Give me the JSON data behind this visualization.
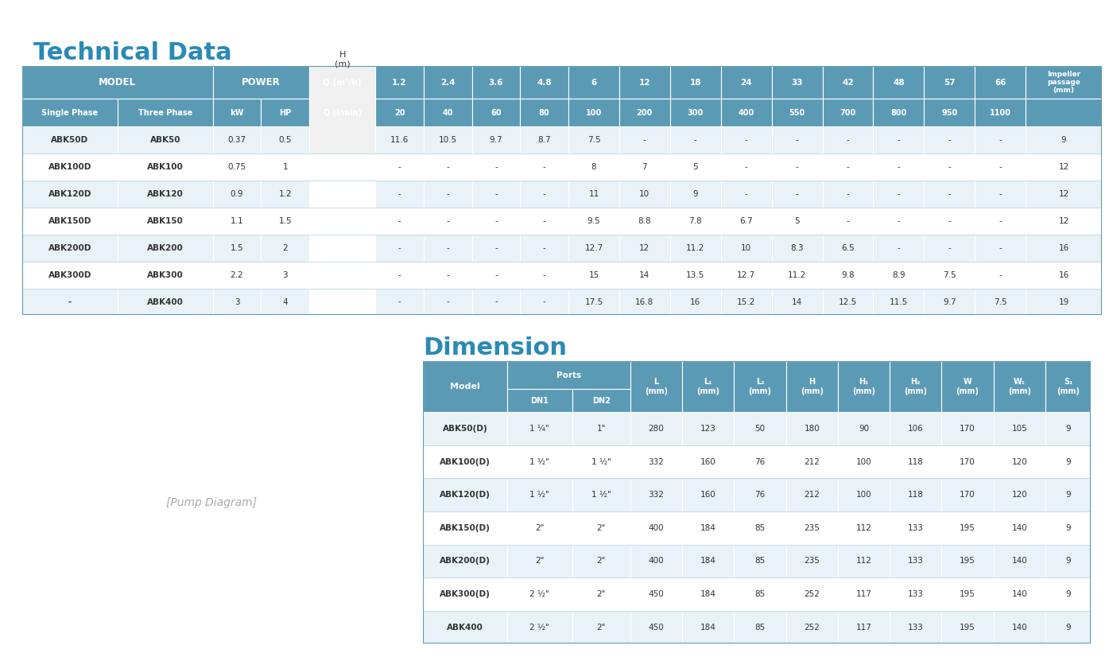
{
  "title1": "Technical Data",
  "title2": "Dimension",
  "header_color": "#5b9ab5",
  "header_text_color": "#ffffff",
  "alt_row_color": "#e8f2f7",
  "row_color": "#ffffff",
  "border_color": "#5b9ab5",
  "text_color": "#333333",
  "title_color": "#2a8ab5",
  "tech_headers_row1": [
    "MODEL",
    "",
    "POWER",
    "",
    "Q (m³/h)",
    "1.2",
    "2.4",
    "3.6",
    "4.8",
    "6",
    "12",
    "18",
    "24",
    "33",
    "42",
    "48",
    "57",
    "66",
    "Impeller\npassage\n(mm)"
  ],
  "tech_headers_row2": [
    "Single Phase",
    "Three Phase",
    "kW",
    "HP",
    "Q (l/min)",
    "20",
    "40",
    "60",
    "80",
    "100",
    "200",
    "300",
    "400",
    "550",
    "700",
    "800",
    "950",
    "1100",
    ""
  ],
  "tech_data": [
    [
      "ABK50D",
      "ABK50",
      "0.37",
      "0.5",
      "",
      "11.6",
      "10.5",
      "9.7",
      "8.7",
      "7.5",
      "-",
      "-",
      "-",
      "-",
      "-",
      "-",
      "-",
      "-",
      "9"
    ],
    [
      "ABK100D",
      "ABK100",
      "0.75",
      "1",
      "",
      "-",
      "-",
      "-",
      "-",
      "8",
      "7",
      "5",
      "-",
      "-",
      "-",
      "-",
      "-",
      "-",
      "12"
    ],
    [
      "ABK120D",
      "ABK120",
      "0.9",
      "1.2",
      "H\n(m)",
      "-",
      "-",
      "-",
      "-",
      "11",
      "10",
      "9",
      "-",
      "-",
      "-",
      "-",
      "-",
      "-",
      "12"
    ],
    [
      "ABK150D",
      "ABK150",
      "1.1",
      "1.5",
      "",
      "-",
      "-",
      "-",
      "-",
      "9.5",
      "8.8",
      "7.8",
      "6.7",
      "5",
      "-",
      "-",
      "-",
      "-",
      "12"
    ],
    [
      "ABK200D",
      "ABK200",
      "1.5",
      "2",
      "",
      "-",
      "-",
      "-",
      "-",
      "12.7",
      "12",
      "11.2",
      "10",
      "8.3",
      "6.5",
      "-",
      "-",
      "-",
      "16"
    ],
    [
      "ABK300D",
      "ABK300",
      "2.2",
      "3",
      "",
      "-",
      "-",
      "-",
      "-",
      "15",
      "14",
      "13.5",
      "12.7",
      "11.2",
      "9.8",
      "8.9",
      "7.5",
      "-",
      "16"
    ],
    [
      "-",
      "ABK400",
      "3",
      "4",
      "",
      "-",
      "-",
      "-",
      "-",
      "17.5",
      "16.8",
      "16",
      "15.2",
      "14",
      "12.5",
      "11.5",
      "9.7",
      "7.5",
      "19"
    ]
  ],
  "dim_headers": [
    "Model",
    "Ports\nDN1",
    "Ports\nDN2",
    "L\n(mm)",
    "L₁\n(mm)",
    "L₂\n(mm)",
    "H\n(mm)",
    "H₁\n(mm)",
    "H₂\n(mm)",
    "W\n(mm)",
    "W₁\n(mm)",
    "S₁\n(mm)"
  ],
  "dim_data": [
    [
      "ABK50(D)",
      "1 ¼\"",
      "1\"",
      "280",
      "123",
      "50",
      "180",
      "90",
      "106",
      "170",
      "105",
      "9"
    ],
    [
      "ABK100(D)",
      "1 ½\"",
      "1 ½\"",
      "332",
      "160",
      "76",
      "212",
      "100",
      "118",
      "170",
      "120",
      "9"
    ],
    [
      "ABK120(D)",
      "1 ½\"",
      "1 ½\"",
      "332",
      "160",
      "76",
      "212",
      "100",
      "118",
      "170",
      "120",
      "9"
    ],
    [
      "ABK150(D)",
      "2\"",
      "2\"",
      "400",
      "184",
      "85",
      "235",
      "112",
      "133",
      "195",
      "140",
      "9"
    ],
    [
      "ABK200(D)",
      "2\"",
      "2\"",
      "400",
      "184",
      "85",
      "235",
      "112",
      "133",
      "195",
      "140",
      "9"
    ],
    [
      "ABK300(D)",
      "2 ½\"",
      "2\"",
      "450",
      "184",
      "85",
      "252",
      "117",
      "133",
      "195",
      "140",
      "9"
    ],
    [
      "ABK400",
      "2 ½\"",
      "2\"",
      "450",
      "184",
      "85",
      "252",
      "117",
      "133",
      "195",
      "140",
      "9"
    ]
  ]
}
